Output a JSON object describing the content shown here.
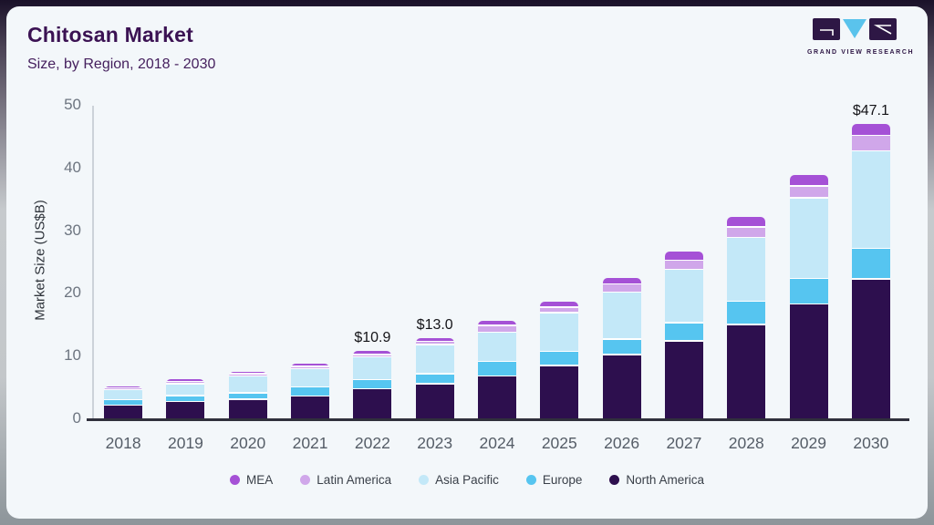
{
  "header": {
    "title": "Chitosan Market",
    "subtitle": "Size, by Region, 2018 - 2030"
  },
  "logo": {
    "text": "GRAND VIEW RESEARCH"
  },
  "colors": {
    "card_bg": "#f3f7fa",
    "title": "#3b1253",
    "axis_line": "#ccd2d9",
    "baseline": "#30303c"
  },
  "chart_data": {
    "type": "bar",
    "stacked": true,
    "title": "Chitosan Market Size, by Region, 2018 - 2030",
    "xlabel": "",
    "ylabel": "Market Size (US$B)",
    "ylim": [
      0,
      50
    ],
    "yticks": [
      0,
      10,
      20,
      30,
      40,
      50
    ],
    "grid": false,
    "legend_position": "bottom",
    "categories": [
      "2018",
      "2019",
      "2020",
      "2021",
      "2022",
      "2023",
      "2024",
      "2025",
      "2026",
      "2027",
      "2028",
      "2029",
      "2030"
    ],
    "series": [
      {
        "name": "North America",
        "color": "#2d0f4e",
        "values": [
          2.4,
          2.9,
          3.3,
          3.8,
          5.0,
          5.8,
          7.0,
          8.7,
          10.4,
          12.6,
          15.2,
          18.5,
          22.5
        ]
      },
      {
        "name": "Europe",
        "color": "#56c5f0",
        "values": [
          0.8,
          1.0,
          1.0,
          1.45,
          1.45,
          1.6,
          2.3,
          2.2,
          2.5,
          2.9,
          3.7,
          4.1,
          4.9
        ]
      },
      {
        "name": "Asia Pacific",
        "color": "#c3e8f8",
        "values": [
          1.6,
          1.9,
          2.7,
          2.9,
          3.6,
          4.6,
          4.7,
          6.2,
          7.5,
          8.5,
          10.2,
          12.8,
          15.5
        ]
      },
      {
        "name": "Latin America",
        "color": "#d0a7ea",
        "values": [
          0.3,
          0.35,
          0.35,
          0.4,
          0.4,
          0.5,
          1.05,
          0.9,
          1.25,
          1.45,
          1.7,
          1.9,
          2.5
        ]
      },
      {
        "name": "MEA",
        "color": "#a551d6",
        "values": [
          0.15,
          0.2,
          0.25,
          0.35,
          0.45,
          0.5,
          0.6,
          0.75,
          0.85,
          1.35,
          1.45,
          1.7,
          1.7
        ]
      }
    ],
    "bar_labels": {
      "2022": "$10.9",
      "2023": "$13.0",
      "2030": "$47.1"
    },
    "legend": [
      "MEA",
      "Latin America",
      "Asia Pacific",
      "Europe",
      "North America"
    ]
  }
}
